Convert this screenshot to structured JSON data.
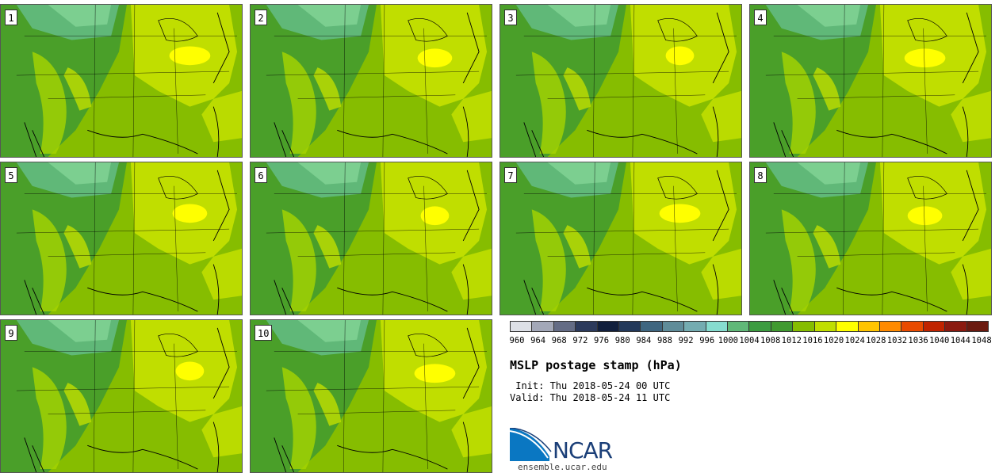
{
  "panels": [
    {
      "number": "1"
    },
    {
      "number": "2"
    },
    {
      "number": "3"
    },
    {
      "number": "4"
    },
    {
      "number": "5"
    },
    {
      "number": "6"
    },
    {
      "number": "7"
    },
    {
      "number": "8"
    },
    {
      "number": "9"
    },
    {
      "number": "10"
    }
  ],
  "colorbar": {
    "colors": [
      "#dde0e6",
      "#a3a8b8",
      "#646c85",
      "#2c3a5c",
      "#111f3d",
      "#22385a",
      "#3f6680",
      "#5f8c99",
      "#74acb1",
      "#86dccf",
      "#60b878",
      "#3c9c40",
      "#409a30",
      "#86bd00",
      "#c0de00",
      "#ffff00",
      "#ffc400",
      "#ff8a00",
      "#e94b00",
      "#c02400",
      "#8b1a10",
      "#6b1a10"
    ],
    "tick_labels": [
      "960",
      "964",
      "968",
      "972",
      "976",
      "980",
      "984",
      "988",
      "992",
      "996",
      "1000",
      "1004",
      "1008",
      "1012",
      "1016",
      "1020",
      "1024",
      "1028",
      "1032",
      "1036",
      "1040",
      "1044",
      "1048"
    ]
  },
  "title": "MSLP postage stamp (hPa)",
  "init": " Init: Thu 2018-05-24 00 UTC",
  "valid": "Valid: Thu 2018-05-24 11 UTC",
  "logo": {
    "text": "NCAR",
    "url": "ensemble.ucar.edu"
  },
  "map_colors": {
    "ocean": "#86bd00",
    "low": "#409a30",
    "mid": "#60b878",
    "high": "#c0de00",
    "peak": "#ffff00"
  }
}
